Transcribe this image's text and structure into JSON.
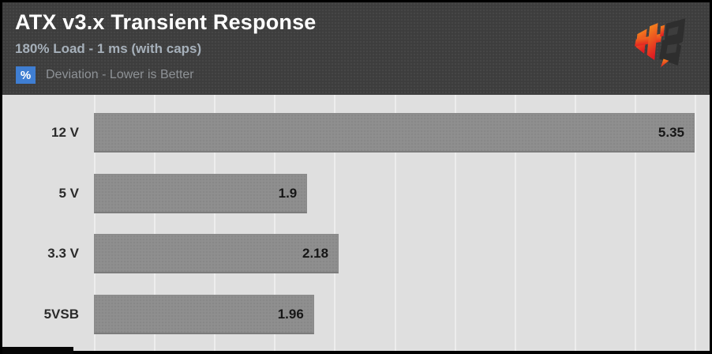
{
  "header": {
    "title": "ATX v3.x Transient Response",
    "subtitle": "180% Load - 1 ms (with caps)",
    "metric_badge": "%",
    "metric_label": "Deviation - Lower is Better",
    "logo_name": "hardware-busters-logo"
  },
  "colors": {
    "header_bg": "#3d3d3d",
    "chart_bg": "#dfdfdf",
    "bar_fill": "#8f8f8f",
    "gridline": "#ededed",
    "badge_blue": "#3f7ed2",
    "title_text": "#ffffff",
    "subtitle_text": "#a6b0ba",
    "metric_text": "#8e9296",
    "category_text": "#2b2b2b",
    "value_text": "#161616",
    "logo_red_top": "#f7941d",
    "logo_red_bottom": "#e01b22",
    "logo_dark": "#2e2e2e"
  },
  "chart_data": {
    "type": "bar",
    "orientation": "horizontal",
    "title": "ATX v3.x Transient Response",
    "subtitle": "180% Load - 1 ms (with caps)",
    "unit": "%",
    "note": "Deviation - Lower is Better",
    "categories": [
      "12 V",
      "5 V",
      "3.3 V",
      "5VSB"
    ],
    "values": [
      5.35,
      1.9,
      2.18,
      1.96
    ],
    "value_labels": [
      "5.35",
      "1.9",
      "2.18",
      "1.96"
    ],
    "xlim": [
      0,
      5.35
    ],
    "axis_max": 5.35,
    "gridline_count": 10,
    "grid": true,
    "legend": false
  }
}
